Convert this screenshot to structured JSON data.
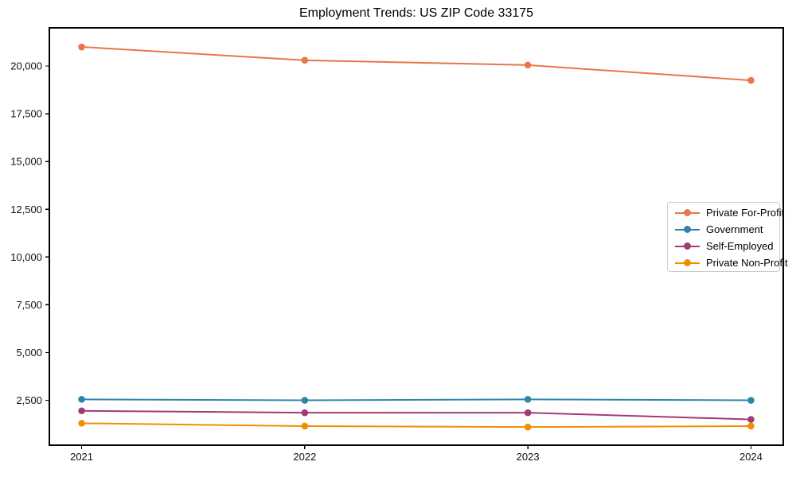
{
  "figure": {
    "background": "#ffffff",
    "axis_color": "#000000",
    "tick_label_color": "#111111",
    "legend_border_color": "#cccccc"
  },
  "chart_data": {
    "type": "line",
    "title": "Employment Trends: US ZIP Code 33175",
    "xlabel": "",
    "ylabel": "",
    "categories": [
      "2021",
      "2022",
      "2023",
      "2024"
    ],
    "series": [
      {
        "name": "Private For-Profit",
        "color": "#E8764B",
        "values": [
          21000,
          20300,
          20050,
          19250
        ]
      },
      {
        "name": "Government",
        "color": "#2E86AB",
        "values": [
          2550,
          2500,
          2550,
          2500
        ]
      },
      {
        "name": "Self-Employed",
        "color": "#A23B72",
        "values": [
          1950,
          1850,
          1850,
          1500
        ]
      },
      {
        "name": "Private Non-Profit",
        "color": "#F18F01",
        "values": [
          1300,
          1150,
          1100,
          1150
        ]
      }
    ],
    "ylim": [
      150,
      22000
    ],
    "y_ticks": [
      2500,
      5000,
      7500,
      10000,
      12500,
      15000,
      17500,
      20000
    ],
    "y_tick_labels": [
      "2,500",
      "5,000",
      "7,500",
      "10,000",
      "12,500",
      "15,000",
      "17,500",
      "20,000"
    ],
    "grid": false,
    "legend_position": "center-right",
    "marker": "circle"
  }
}
